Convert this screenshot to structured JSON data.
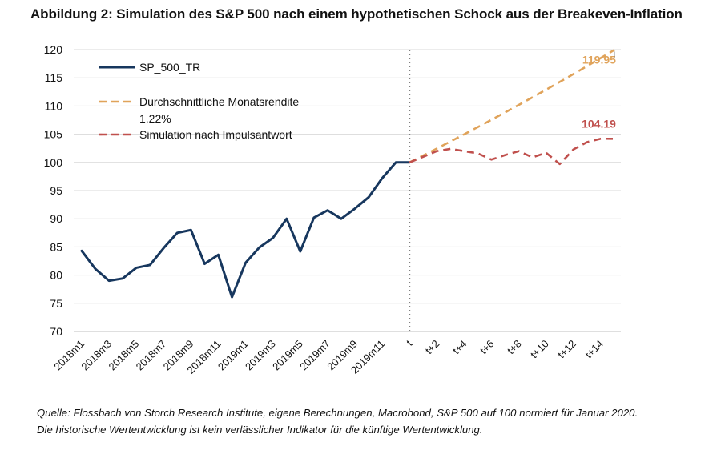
{
  "title": "Abbildung 2: Simulation des S&P 500 nach einem hypothetischen Schock aus der Breakeven-Inflation",
  "source": {
    "line1": "Quelle: Flossbach von Storch Research Institute, eigene Berechnungen, Macrobond, S&P 500 auf 100 normiert für Januar 2020.",
    "line2": "Die historische Wertentwicklung ist kein verlässlicher Indikator für die künftige Wertentwicklung."
  },
  "chart_data": {
    "type": "line",
    "ylim": [
      70,
      120
    ],
    "yticks": [
      70,
      75,
      80,
      85,
      90,
      95,
      100,
      105,
      110,
      115,
      120
    ],
    "grid": true,
    "legend_position": "top-left",
    "x": [
      "2018m1",
      "2018m2",
      "2018m3",
      "2018m4",
      "2018m5",
      "2018m6",
      "2018m7",
      "2018m8",
      "2018m9",
      "2018m10",
      "2018m11",
      "2018m12",
      "2019m1",
      "2019m2",
      "2019m3",
      "2019m4",
      "2019m5",
      "2019m6",
      "2019m7",
      "2019m8",
      "2019m9",
      "2019m10",
      "2019m11",
      "2019m12",
      "t",
      "t+1",
      "t+2",
      "t+3",
      "t+4",
      "t+5",
      "t+6",
      "t+7",
      "t+8",
      "t+9",
      "t+10",
      "t+11",
      "t+12",
      "t+13",
      "t+14",
      "t+15"
    ],
    "xtick_labels": [
      "2018m1",
      "2018m3",
      "2018m5",
      "2018m7",
      "2018m9",
      "2018m11",
      "2019m1",
      "2019m3",
      "2019m5",
      "2019m7",
      "2019m9",
      "2019m11",
      "t",
      "t+2",
      "t+4",
      "t+6",
      "t+8",
      "t+10",
      "t+12",
      "t+14"
    ],
    "divider_at": "t",
    "series": [
      {
        "name": "SP_500_TR",
        "color": "#17375e",
        "style": "solid",
        "values": [
          84.3,
          81.1,
          79.0,
          79.4,
          81.3,
          81.8,
          84.8,
          87.5,
          88.0,
          82.0,
          83.6,
          76.1,
          82.2,
          84.9,
          86.6,
          90.0,
          84.2,
          90.2,
          91.5,
          90.0,
          91.8,
          93.8,
          97.2,
          100.0,
          100.0,
          null,
          null,
          null,
          null,
          null,
          null,
          null,
          null,
          null,
          null,
          null,
          null,
          null,
          null,
          null
        ]
      },
      {
        "name": "Durchschnittliche Monatsrendite 1.22%",
        "name_line1": "Durchschnittliche Monatsrendite",
        "name_line2": "1.22%",
        "color": "#e0a35a",
        "style": "dashed",
        "values": [
          null,
          null,
          null,
          null,
          null,
          null,
          null,
          null,
          null,
          null,
          null,
          null,
          null,
          null,
          null,
          null,
          null,
          null,
          null,
          null,
          null,
          null,
          null,
          null,
          100.0,
          101.22,
          102.46,
          103.71,
          104.98,
          106.26,
          107.56,
          108.87,
          110.2,
          111.54,
          112.9,
          114.28,
          115.67,
          117.08,
          118.51,
          119.95
        ],
        "end_label": "119.95"
      },
      {
        "name": "Simulation nach Impulsantwort",
        "color": "#c0504d",
        "style": "dashed",
        "values": [
          null,
          null,
          null,
          null,
          null,
          null,
          null,
          null,
          null,
          null,
          null,
          null,
          null,
          null,
          null,
          null,
          null,
          null,
          null,
          null,
          null,
          null,
          null,
          null,
          100.0,
          101.0,
          102.0,
          102.4,
          102.0,
          101.6,
          100.5,
          101.3,
          102.0,
          100.9,
          101.7,
          99.7,
          102.3,
          103.6,
          104.2,
          104.19
        ],
        "end_label": "104.19"
      }
    ]
  }
}
